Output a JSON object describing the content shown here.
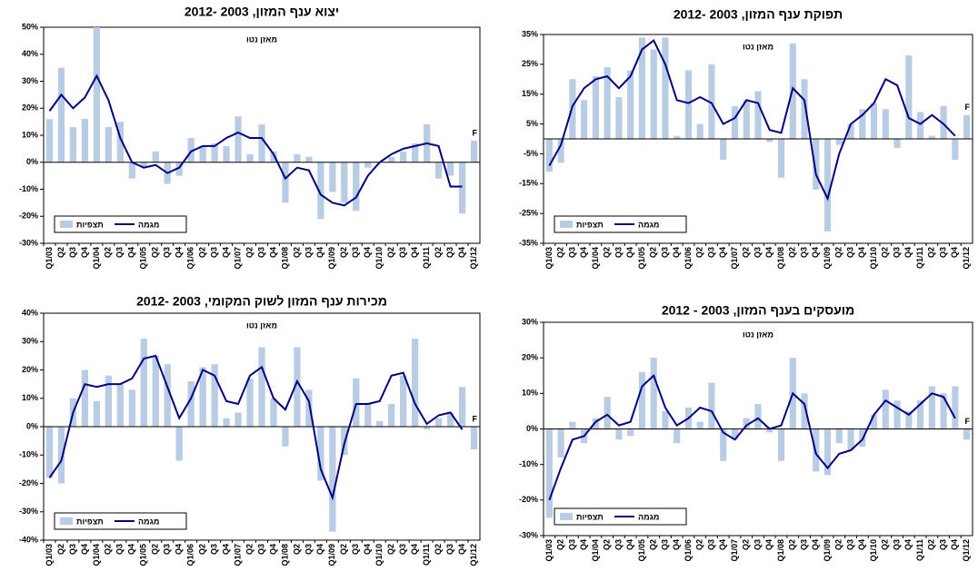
{
  "chart_data": [
    {
      "type": "combo",
      "title": "יצוא ענף המזון, 2003 -2012",
      "annotations": [
        "מאזן נטו",
        "F"
      ],
      "categories": [
        "Q1/03",
        "Q2",
        "Q3",
        "Q4",
        "Q1/04",
        "Q2",
        "Q3",
        "Q4",
        "Q1/05",
        "Q2",
        "Q3",
        "Q4",
        "Q1/06",
        "Q2",
        "Q3",
        "Q4",
        "Q1/07",
        "Q2",
        "Q3",
        "Q4",
        "Q1/08",
        "Q2",
        "Q3",
        "Q4",
        "Q1/09",
        "Q2",
        "Q3",
        "Q4",
        "Q1/10",
        "Q2",
        "Q3",
        "Q4",
        "Q1/11",
        "Q2",
        "Q3",
        "Q4",
        "Q1/12"
      ],
      "ylim": [
        -30,
        50
      ],
      "yticks": [
        {
          "value": -30,
          "label": "-30%"
        },
        {
          "value": -20,
          "label": "-20%"
        },
        {
          "value": -10,
          "label": "-10%"
        },
        {
          "value": 0,
          "label": "0%"
        },
        {
          "value": 10,
          "label": "10%"
        },
        {
          "value": 20,
          "label": "20%"
        },
        {
          "value": 30,
          "label": "30%"
        },
        {
          "value": 40,
          "label": "40%"
        },
        {
          "value": 50,
          "label": "50%"
        }
      ],
      "grid": false,
      "series": [
        {
          "name": "תצפיות",
          "type": "bar",
          "color": "#b8cce4",
          "values": [
            16,
            35,
            13,
            16,
            50,
            13,
            15,
            -6,
            -2,
            4,
            -8,
            -5,
            9,
            6,
            7,
            6,
            17,
            3,
            14,
            4,
            -15,
            3,
            2,
            -21,
            -11,
            -15,
            -18,
            -2,
            0,
            2,
            4,
            7,
            14,
            -6,
            -5,
            -19,
            8
          ]
        },
        {
          "name": "מגמה",
          "type": "line",
          "color": "#000080",
          "values": [
            19,
            25,
            20,
            24,
            32,
            23,
            9,
            0,
            -2,
            -1,
            -4,
            -2,
            4,
            6,
            6,
            9,
            11,
            9,
            9,
            3,
            -6,
            -2,
            -3,
            -12,
            -15,
            -16,
            -13,
            -5,
            0,
            3,
            5,
            6,
            7,
            6,
            -9,
            -9,
            null
          ]
        }
      ]
    },
    {
      "type": "combo",
      "title": "תפוקת ענף המזון, 2003 -2012",
      "annotations": [
        "מאזן נטו",
        "F"
      ],
      "categories": [
        "Q1/03",
        "Q2",
        "Q3",
        "Q4",
        "Q1/04",
        "Q2",
        "Q3",
        "Q4",
        "Q1/05",
        "Q2",
        "Q3",
        "Q4",
        "Q1/06",
        "Q2",
        "Q3",
        "Q4",
        "Q1/07",
        "Q2",
        "Q3",
        "Q4",
        "Q1/08",
        "Q2",
        "Q3",
        "Q4",
        "Q1/09",
        "Q2",
        "Q3",
        "Q4",
        "Q1/10",
        "Q2",
        "Q3",
        "Q4",
        "Q1/11",
        "Q2",
        "Q3",
        "Q4",
        "Q1/12"
      ],
      "ylim": [
        -35,
        35
      ],
      "yticks": [
        {
          "value": -35,
          "label": "-35%"
        },
        {
          "value": -25,
          "label": "-25%"
        },
        {
          "value": -15,
          "label": "-15%"
        },
        {
          "value": -5,
          "label": "-5%"
        },
        {
          "value": 5,
          "label": "5%"
        },
        {
          "value": 15,
          "label": "15%"
        },
        {
          "value": 25,
          "label": "25%"
        },
        {
          "value": 35,
          "label": "35%"
        }
      ],
      "grid": false,
      "series": [
        {
          "name": "תצפיות",
          "type": "bar",
          "color": "#b8cce4",
          "values": [
            -11,
            -8,
            20,
            13,
            21,
            24,
            14,
            23,
            34,
            30,
            34,
            1,
            23,
            5,
            25,
            -7,
            11,
            13,
            16,
            -1,
            -13,
            32,
            20,
            -17,
            -31,
            -2,
            5,
            10,
            12,
            10,
            -3,
            28,
            9,
            1,
            11,
            -7,
            8
          ]
        },
        {
          "name": "מגמה",
          "type": "line",
          "color": "#000080",
          "values": [
            -9,
            -2,
            11,
            17,
            20,
            21,
            17,
            21,
            30,
            33,
            25,
            13,
            12,
            14,
            12,
            5,
            7,
            13,
            12,
            3,
            2,
            17,
            13,
            -12,
            -20,
            -5,
            5,
            8,
            12,
            20,
            18,
            7,
            5,
            8,
            5,
            1,
            null
          ]
        }
      ]
    },
    {
      "type": "combo",
      "title": "מכירות ענף המזון לשוק המקומי, 2003 -2012",
      "annotations": [
        "מאזן נטו",
        "F"
      ],
      "categories": [
        "Q1/03",
        "Q2",
        "Q3",
        "Q4",
        "Q1/04",
        "Q2",
        "Q3",
        "Q4",
        "Q1/05",
        "Q2",
        "Q3",
        "Q4",
        "Q1/06",
        "Q2",
        "Q3",
        "Q4",
        "Q1/07",
        "Q2",
        "Q3",
        "Q4",
        "Q1/08",
        "Q2",
        "Q3",
        "Q4",
        "Q1/09",
        "Q2",
        "Q3",
        "Q4",
        "Q1/10",
        "Q2",
        "Q3",
        "Q4",
        "Q1/11",
        "Q2",
        "Q3",
        "Q4",
        "Q1/12"
      ],
      "ylim": [
        -40,
        40
      ],
      "yticks": [
        {
          "value": -40,
          "label": "-40%"
        },
        {
          "value": -30,
          "label": "-30%"
        },
        {
          "value": -20,
          "label": "-20%"
        },
        {
          "value": -10,
          "label": "-10%"
        },
        {
          "value": 0,
          "label": "0%"
        },
        {
          "value": 10,
          "label": "10%"
        },
        {
          "value": 20,
          "label": "20%"
        },
        {
          "value": 30,
          "label": "30%"
        },
        {
          "value": 40,
          "label": "40%"
        }
      ],
      "grid": false,
      "series": [
        {
          "name": "תצפיות",
          "type": "bar",
          "color": "#b8cce4",
          "values": [
            -18,
            -20,
            10,
            20,
            9,
            18,
            15,
            13,
            31,
            25,
            22,
            -12,
            16,
            21,
            22,
            3,
            5,
            17,
            28,
            10,
            -7,
            28,
            13,
            -19,
            -37,
            -10,
            17,
            8,
            2,
            8,
            18,
            31,
            -1,
            3,
            5,
            14,
            -8
          ]
        },
        {
          "name": "מגמה",
          "type": "line",
          "color": "#000080",
          "values": [
            -18,
            -12,
            5,
            15,
            14,
            15,
            15,
            17,
            24,
            25,
            14,
            3,
            10,
            20,
            18,
            9,
            8,
            18,
            21,
            10,
            6,
            16,
            9,
            -15,
            -25,
            -6,
            8,
            8,
            9,
            18,
            19,
            8,
            1,
            4,
            5,
            -1,
            null
          ]
        }
      ]
    },
    {
      "type": "combo",
      "title": "מועסקים בענף המזון, 2003 - 2012",
      "annotations": [
        "מאזן נטו",
        "F"
      ],
      "categories": [
        "Q1/03",
        "Q2",
        "Q3",
        "Q4",
        "Q1/04",
        "Q2",
        "Q3",
        "Q4",
        "Q1/05",
        "Q2",
        "Q3",
        "Q4",
        "Q1/06",
        "Q2",
        "Q3",
        "Q4",
        "Q1/07",
        "Q2",
        "Q3",
        "Q4",
        "Q1/08",
        "Q2",
        "Q3",
        "Q4",
        "Q1/09",
        "Q2",
        "Q3",
        "Q4",
        "Q1/10",
        "Q2",
        "Q3",
        "Q4",
        "Q1/11",
        "Q2",
        "Q3",
        "Q4",
        "Q1/12"
      ],
      "ylim": [
        -30,
        30
      ],
      "yticks": [
        {
          "value": -30,
          "label": "-30%"
        },
        {
          "value": -20,
          "label": "-20%"
        },
        {
          "value": -10,
          "label": "-10%"
        },
        {
          "value": 0,
          "label": "0%"
        },
        {
          "value": 10,
          "label": "10%"
        },
        {
          "value": 20,
          "label": "20%"
        },
        {
          "value": 30,
          "label": "30%"
        }
      ],
      "grid": false,
      "series": [
        {
          "name": "תצפיות",
          "type": "bar",
          "color": "#b8cce4",
          "values": [
            -25,
            -8,
            2,
            -4,
            3,
            9,
            -3,
            -2,
            16,
            20,
            5,
            -4,
            6,
            2,
            13,
            -9,
            -3,
            3,
            7,
            -1,
            -9,
            20,
            10,
            -12,
            -13,
            -4,
            -6,
            -5,
            4,
            11,
            8,
            5,
            8,
            12,
            10,
            12,
            -3
          ]
        },
        {
          "name": "מגמה",
          "type": "line",
          "color": "#000080",
          "values": [
            -20,
            -11,
            -3,
            -2,
            2,
            4,
            1,
            2,
            12,
            15,
            6,
            1,
            3,
            6,
            5,
            -1,
            -3,
            1,
            3,
            0,
            1,
            10,
            7,
            -7,
            -11,
            -7,
            -6,
            -3,
            4,
            8,
            6,
            4,
            7,
            10,
            9,
            3,
            null
          ]
        }
      ]
    }
  ]
}
